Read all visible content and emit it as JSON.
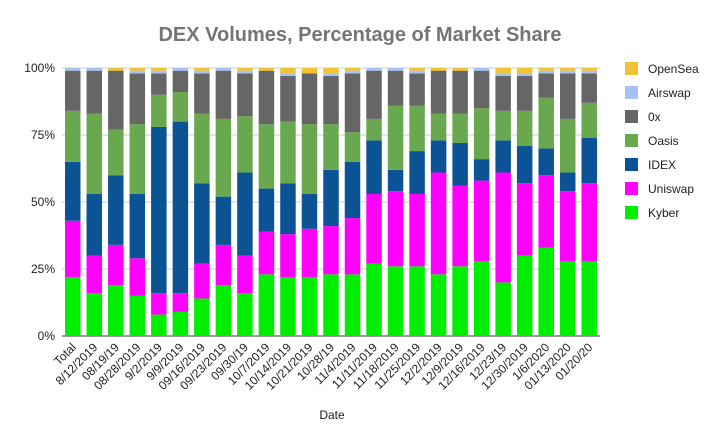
{
  "chart_data": {
    "type": "bar",
    "stacked": true,
    "title": "DEX Volumes, Percentage of Market Share",
    "xlabel": "Date",
    "ylabel": "",
    "ylim": [
      0,
      100
    ],
    "yticks": [
      "0%",
      "25%",
      "50%",
      "75%",
      "100%"
    ],
    "legend_position": "right",
    "categories": [
      "Total",
      "8/12/2019",
      "08/19/19",
      "08/28/2019",
      "9/2/2019",
      "9/9/2019",
      "09/16/2019",
      "09/23/2019",
      "09/30/19",
      "10/7/2019",
      "10/14/2019",
      "10/21/2019",
      "10/28/19",
      "11/4/2019",
      "11/11/2019",
      "11/18/2019",
      "11/25/2019",
      "12/2/2019",
      "12/9/2019",
      "12/16/2019",
      "12/23/19",
      "12/30/2019",
      "1/6/2020",
      "01/13/2020",
      "01/20/20"
    ],
    "series": [
      {
        "name": "Kyber",
        "color": "#00ee00",
        "values": [
          22,
          16,
          19,
          15,
          8,
          9,
          14,
          19,
          16,
          23,
          22,
          22,
          23,
          23,
          27,
          26,
          26,
          23,
          26,
          28,
          20,
          30,
          33,
          28,
          28
        ]
      },
      {
        "name": "Uniswap",
        "color": "#ff00ff",
        "values": [
          21,
          14,
          15,
          14,
          8,
          7,
          13,
          15,
          14,
          16,
          16,
          18,
          18,
          21,
          26,
          28,
          27,
          38,
          30,
          30,
          41,
          27,
          27,
          26,
          29
        ]
      },
      {
        "name": "IDEX",
        "color": "#0b5394",
        "values": [
          22,
          23,
          26,
          24,
          62,
          64,
          30,
          18,
          31,
          16,
          19,
          13,
          21,
          21,
          20,
          8,
          16,
          12,
          16,
          8,
          12,
          14,
          10,
          7,
          17
        ]
      },
      {
        "name": "Oasis",
        "color": "#6aa84f",
        "values": [
          19,
          30,
          17,
          26,
          12,
          11,
          26,
          29,
          21,
          24,
          23,
          26,
          17,
          11,
          8,
          24,
          17,
          10,
          11,
          19,
          11,
          13,
          19,
          20,
          13
        ]
      },
      {
        "name": "0x",
        "color": "#666666",
        "values": [
          15,
          16,
          22,
          19,
          8,
          8,
          15,
          18,
          16,
          20,
          17,
          19,
          18,
          22,
          18,
          13,
          12,
          16,
          16,
          14,
          13,
          13,
          9,
          17,
          11
        ]
      },
      {
        "name": "Airswap",
        "color": "#a4c2f4",
        "values": [
          1,
          1,
          0,
          1,
          1,
          1,
          1,
          1,
          1,
          0,
          1,
          0,
          1,
          1,
          1,
          1,
          1,
          0,
          0,
          1,
          1,
          1,
          1,
          1,
          1
        ]
      },
      {
        "name": "OpenSea",
        "color": "#f1c232",
        "values": [
          0,
          0,
          1,
          1,
          1,
          0,
          1,
          0,
          1,
          1,
          2,
          2,
          2,
          1,
          0,
          0,
          1,
          1,
          1,
          0,
          2,
          2,
          1,
          1,
          1
        ]
      }
    ]
  }
}
